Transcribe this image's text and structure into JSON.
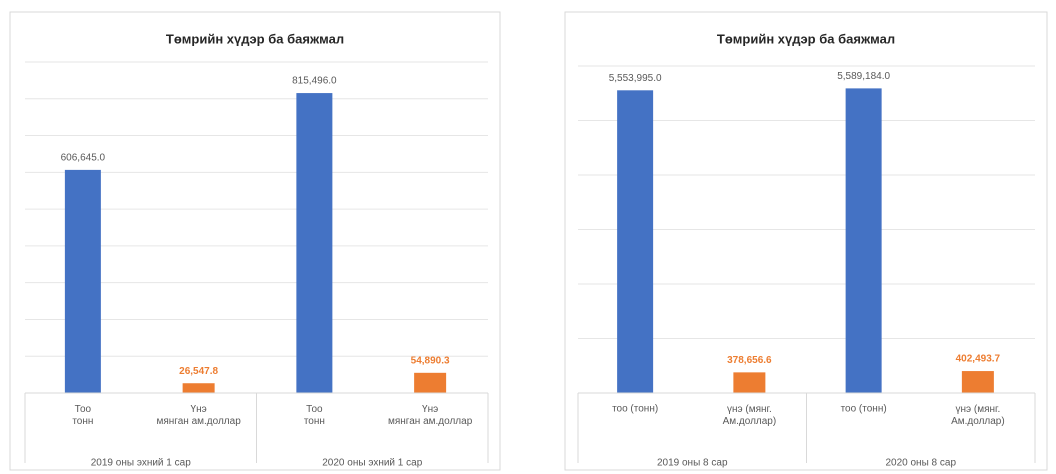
{
  "chart_data": [
    {
      "type": "bar",
      "title": "Төмрийн хүдэр ба баяжмал",
      "categories": [
        "Тоо\nтонн",
        "Үнэ\nмянган ам.доллар",
        "Тоо\nтонн",
        "Үнэ\nмянган ам.доллар"
      ],
      "groups": [
        "2019 оны эхний 1 сар",
        "2020 оны эхний 1 сар"
      ],
      "values": [
        606645.0,
        26547.8,
        815496.0,
        54890.3
      ],
      "value_labels": [
        "606,645.0",
        "26,547.8",
        "815,496.0",
        "54,890.3"
      ],
      "colors": [
        "#4472c4",
        "#ed7d31",
        "#4472c4",
        "#ed7d31"
      ],
      "ylim": [
        0,
        900000
      ],
      "yticks": [
        0,
        100000,
        200000,
        300000,
        400000,
        500000,
        600000,
        700000,
        800000,
        900000
      ],
      "grid": true
    },
    {
      "type": "bar",
      "title": "Төмрийн хүдэр ба баяжмал",
      "categories": [
        "тоо (тонн)",
        "үнэ (мянг.\nАм.доллар)",
        "тоо (тонн)",
        "үнэ (мянг.\nАм.доллар)"
      ],
      "groups": [
        "2019 оны 8 сар",
        "2020 оны 8 сар"
      ],
      "values": [
        5553995.0,
        378656.6,
        5589184.0,
        402493.7
      ],
      "value_labels": [
        "5,553,995.0",
        "378,656.6",
        "5,589,184.0",
        "402,493.7"
      ],
      "colors": [
        "#4472c4",
        "#ed7d31",
        "#4472c4",
        "#ed7d31"
      ],
      "ylim": [
        0,
        6000000
      ],
      "yticks": [
        0,
        1000000,
        2000000,
        3000000,
        4000000,
        5000000,
        6000000
      ],
      "grid": true
    }
  ]
}
